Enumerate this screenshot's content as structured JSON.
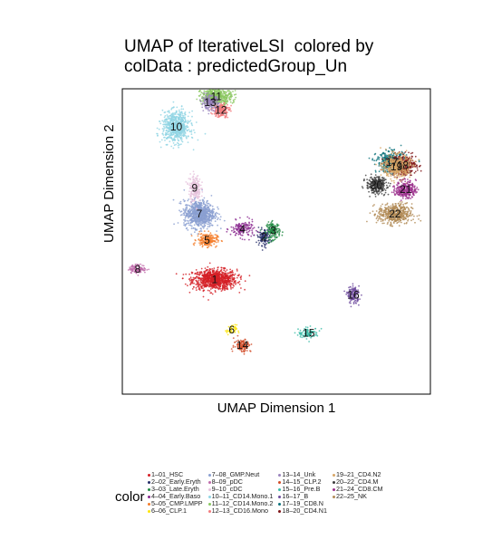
{
  "chart_data": {
    "type": "scatter",
    "title_line1": "UMAP of IterativeLSI  colored by",
    "title_line2": "colData : predictedGroup_Un",
    "xlabel": "UMAP Dimension 1",
    "ylabel": "UMAP Dimension 2",
    "legend_title": "color",
    "xlim": [
      -10,
      10
    ],
    "ylim": [
      -10,
      10
    ],
    "clusters": [
      {
        "label": "1",
        "name": "1–01_HSC",
        "color": "#D51F26",
        "x": -4.0,
        "y": -2.5,
        "sx": 1.3,
        "sy": 0.6,
        "n": 900
      },
      {
        "label": "2",
        "name": "2–02_Early.Eryth",
        "color": "#272E6A",
        "x": -0.8,
        "y": 0.3,
        "sx": 0.4,
        "sy": 0.5,
        "n": 120
      },
      {
        "label": "3",
        "name": "3–03_Late.Eryth",
        "color": "#208A42",
        "x": -0.2,
        "y": 0.7,
        "sx": 0.4,
        "sy": 0.5,
        "n": 150
      },
      {
        "label": "4",
        "name": "4–04_Early.Baso",
        "color": "#89288F",
        "x": -2.2,
        "y": 0.8,
        "sx": 0.7,
        "sy": 0.5,
        "n": 150
      },
      {
        "label": "5",
        "name": "5–05_CMP.LMPP",
        "color": "#F47D2B",
        "x": -4.5,
        "y": 0.1,
        "sx": 0.6,
        "sy": 0.4,
        "n": 200
      },
      {
        "label": "6",
        "name": "6–06_CLP.1",
        "color": "#FEE500",
        "x": -2.9,
        "y": -5.8,
        "sx": 0.3,
        "sy": 0.3,
        "n": 40
      },
      {
        "label": "7",
        "name": "7–08_GMP.Neut",
        "color": "#8A9FD1",
        "x": -5.0,
        "y": 1.8,
        "sx": 0.9,
        "sy": 0.8,
        "n": 800
      },
      {
        "label": "8",
        "name": "8–09_pDC",
        "color": "#C06CAB",
        "x": -9.0,
        "y": -1.8,
        "sx": 0.5,
        "sy": 0.25,
        "n": 130
      },
      {
        "label": "9",
        "name": "9–10_cDC",
        "color": "#E6C2DC",
        "x": -5.3,
        "y": 3.5,
        "sx": 0.35,
        "sy": 0.8,
        "n": 200
      },
      {
        "label": "10",
        "name": "10–11_CD14.Mono.1",
        "color": "#90D5E4",
        "x": -6.5,
        "y": 7.5,
        "sx": 0.8,
        "sy": 0.9,
        "n": 700
      },
      {
        "label": "11",
        "name": "11–12_CD14.Mono.2",
        "color": "#89C75F",
        "x": -3.9,
        "y": 9.5,
        "sx": 0.9,
        "sy": 0.5,
        "n": 500
      },
      {
        "label": "12",
        "name": "12–13_CD16.Mono",
        "color": "#F37B7D",
        "x": -3.6,
        "y": 8.6,
        "sx": 0.5,
        "sy": 0.4,
        "n": 200
      },
      {
        "label": "13",
        "name": "13–14_Unk",
        "color": "#9983BD",
        "x": -4.3,
        "y": 9.1,
        "sx": 0.5,
        "sy": 0.4,
        "n": 200
      },
      {
        "label": "14",
        "name": "14–15_CLP.2",
        "color": "#D24B27",
        "x": -2.2,
        "y": -6.8,
        "sx": 0.5,
        "sy": 0.4,
        "n": 120
      },
      {
        "label": "15",
        "name": "15–16_Pre.B",
        "color": "#3BBCA8",
        "x": 2.1,
        "y": -6.0,
        "sx": 0.6,
        "sy": 0.3,
        "n": 100
      },
      {
        "label": "16",
        "name": "16–17_B",
        "color": "#6E4B9E",
        "x": 5.0,
        "y": -3.5,
        "sx": 0.35,
        "sy": 0.5,
        "n": 150
      },
      {
        "label": "17",
        "name": "17–19_CD8.N",
        "color": "#0C727C",
        "x": 7.5,
        "y": 5.2,
        "sx": 0.9,
        "sy": 0.6,
        "n": 400
      },
      {
        "label": "18",
        "name": "18–20_CD4.N1",
        "color": "#7E1416",
        "x": 8.2,
        "y": 5.0,
        "sx": 0.8,
        "sy": 0.6,
        "n": 400
      },
      {
        "label": "19",
        "name": "19–21_CD4.N2",
        "color": "#D8A767",
        "x": 7.8,
        "y": 4.9,
        "sx": 0.8,
        "sy": 0.7,
        "n": 400
      },
      {
        "label": "20",
        "name": "20–22_CD4.M",
        "color": "#3D3D3D",
        "x": 6.5,
        "y": 3.7,
        "sx": 0.6,
        "sy": 0.5,
        "n": 300
      },
      {
        "label": "21",
        "name": "21–24_CD8.CM",
        "color": "#9B2F8C",
        "x": 8.4,
        "y": 3.4,
        "sx": 0.6,
        "sy": 0.5,
        "n": 300
      },
      {
        "label": "22",
        "name": "22–25_NK",
        "color": "#B28B56",
        "x": 7.7,
        "y": 1.8,
        "sx": 1.0,
        "sy": 0.6,
        "n": 500
      }
    ]
  }
}
